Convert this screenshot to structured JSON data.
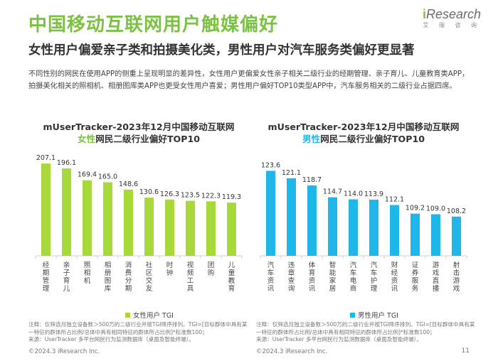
{
  "header": {
    "title": "中国移动互联网用户触媒偏好",
    "subtitle": "女性用户偏爱亲子类和拍摄美化类，男性用户对汽车服务类偏好更显著",
    "description": "不同性别的网民在使用APP的侧重上呈现明显的差异性，女性用户更偏爱女性亲子相关二级行业的经期管理、亲子育儿、儿童教育类APP，拍摄美化相关的照相机、相册图库类APP也更受女性用户喜爱；男性用户偏好TOP10类型APP中，汽车服务相关的二级行业占据四席。"
  },
  "logo": {
    "text_prefix": "i",
    "text_main": "Research",
    "sub": "艾 瑞 咨 询"
  },
  "colors": {
    "female": "#a8d93a",
    "male": "#1fb6ea",
    "accent": "#7cc242"
  },
  "left_chart_title": {
    "line1": "mUserTracker-2023年12月中国移动互联网",
    "hl": "女性",
    "rest": "网民二级行业偏好TOP10"
  },
  "right_chart_title": {
    "line1": "mUserTracker-2023年12月中国移动互联网",
    "hl": "男性",
    "rest": "网民二级行业偏好TOP10"
  },
  "chart_data": [
    {
      "type": "bar",
      "categories": [
        "经期管理",
        "亲子育儿",
        "照相机",
        "相册图库",
        "消费分期",
        "社区交友",
        "时钟",
        "视频工具",
        "团购",
        "儿童教育"
      ],
      "series": [
        {
          "name": "女性用户 TGI",
          "values": [
            207.1,
            196.1,
            169.4,
            165.0,
            148.6,
            130.6,
            126.3,
            123.5,
            122.3,
            119.3
          ]
        }
      ],
      "ylim": [
        0,
        220
      ],
      "grid": false,
      "legend": "bottom"
    },
    {
      "type": "bar",
      "categories": [
        "汽车资讯",
        "违章查询",
        "体育资讯",
        "智能家居",
        "汽车电商",
        "汽车护理",
        "财经资讯",
        "证券服务",
        "游戏直播",
        "射击游戏"
      ],
      "series": [
        {
          "name": "男性用户 TGI",
          "values": [
            123.6,
            121.1,
            118.7,
            114.7,
            114.0,
            113.9,
            112.1,
            109.2,
            109.0,
            108.2
          ]
        }
      ],
      "ylim": [
        95,
        128
      ],
      "grid": false,
      "legend": "bottom"
    }
  ],
  "notes": {
    "left": "注释：仅筛选月独立设备数＞500万的二级行业并按TGI降序排列。TGI=[目标群体中具有某一特征的群体所占比例/总体中具有相同特征的群体所占比例]*标准数100；\n来源：UserTracker 多平台网民行为监测数据库（桌面及智能终端）。",
    "right": "注释：仅筛选月独立设备数＞500万的二级行业并按TGI降序排列。TGI=[目标群体中具有某一特征的群体所占比例/总体中具有相同特征的群体所占比例]*标准数100；\n来源：UserTracker 多平台网民行为监测数据库（桌面及智能终端）。"
  },
  "footer": {
    "copyright": "©2024.3 iResearch Inc.",
    "page": "11"
  }
}
